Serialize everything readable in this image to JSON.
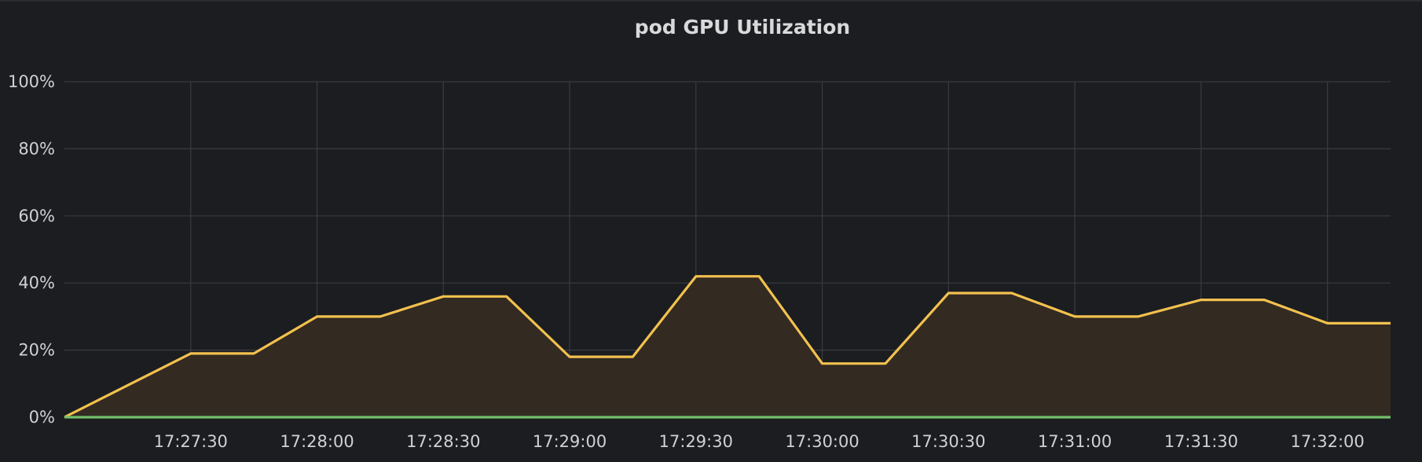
{
  "panel": {
    "title": "pod GPU Utilization"
  },
  "chart_data": {
    "type": "area",
    "title": "pod GPU Utilization",
    "xlabel": "",
    "ylabel": "",
    "x": [
      "17:27:00",
      "17:27:30",
      "17:27:45",
      "17:28:00",
      "17:28:15",
      "17:28:30",
      "17:28:45",
      "17:29:00",
      "17:29:15",
      "17:29:30",
      "17:29:45",
      "17:30:00",
      "17:30:15",
      "17:30:30",
      "17:30:45",
      "17:31:00",
      "17:31:15",
      "17:31:30",
      "17:31:45",
      "17:32:00",
      "17:32:15"
    ],
    "x_ticks": [
      "17:27:30",
      "17:28:00",
      "17:28:30",
      "17:29:00",
      "17:29:30",
      "17:30:00",
      "17:30:30",
      "17:31:00",
      "17:31:30",
      "17:32:00"
    ],
    "y_ticks": [
      "0%",
      "20%",
      "40%",
      "60%",
      "80%",
      "100%"
    ],
    "ylim": [
      0,
      100
    ],
    "y_unit": "%",
    "grid": true,
    "series": [
      {
        "color": "#f2c14e",
        "fill": "#332a22",
        "values": [
          0,
          19,
          19,
          30,
          30,
          36,
          36,
          18,
          18,
          42,
          42,
          16,
          16,
          37,
          37,
          30,
          30,
          35,
          35,
          28,
          28
        ]
      },
      {
        "color": "#73bf69",
        "values": [
          0,
          0,
          0,
          0,
          0,
          0,
          0,
          0,
          0,
          0,
          0,
          0,
          0,
          0,
          0,
          0,
          0,
          0,
          0,
          0,
          0
        ]
      }
    ]
  }
}
